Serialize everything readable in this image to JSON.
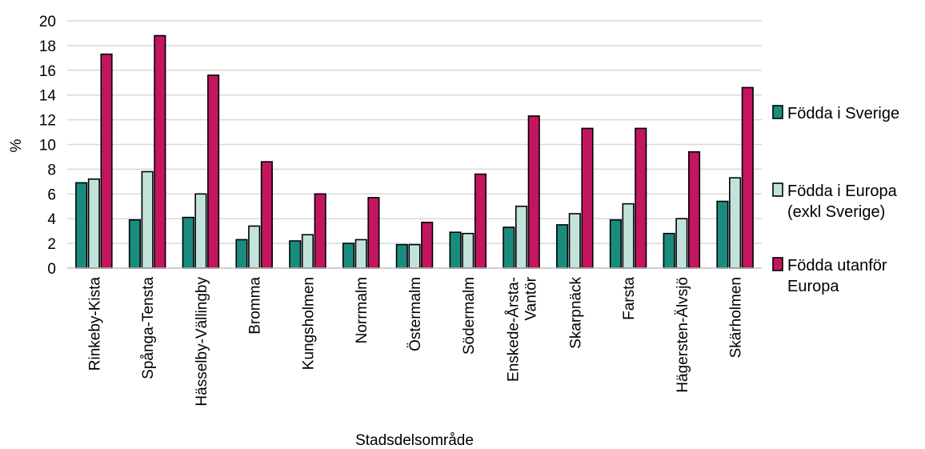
{
  "chart_data": {
    "type": "bar",
    "xlabel": "Stadsdelsområde",
    "ylabel": "%",
    "ylim": [
      0,
      20
    ],
    "yticks": [
      0,
      2,
      4,
      6,
      8,
      10,
      12,
      14,
      16,
      18,
      20
    ],
    "grid": true,
    "legend_position": "right",
    "categories": [
      [
        "Rinkeby-Kista"
      ],
      [
        "Spånga-Tensta"
      ],
      [
        "Hässelby-Vällingby"
      ],
      [
        "Bromma"
      ],
      [
        "Kungsholmen"
      ],
      [
        "Norrmalm"
      ],
      [
        "Östermalm"
      ],
      [
        "Södermalm"
      ],
      [
        "Enskede-Årsta-",
        "Vantör"
      ],
      [
        "Skarpnäck"
      ],
      [
        "Farsta"
      ],
      [
        "Hägersten-Älvsjö"
      ],
      [
        "Skärholmen"
      ]
    ],
    "series": [
      {
        "name": [
          "Födda i Sverige"
        ],
        "color": "#1a8c7e",
        "values": [
          6.9,
          3.9,
          4.1,
          2.3,
          2.2,
          2.0,
          1.9,
          2.9,
          3.3,
          3.5,
          3.9,
          2.8,
          5.4
        ]
      },
      {
        "name": [
          "Födda i Europa",
          "(exkl Sverige)"
        ],
        "color": "#c2e3dc",
        "values": [
          7.2,
          7.8,
          6.0,
          3.4,
          2.7,
          2.3,
          1.9,
          2.8,
          5.0,
          4.4,
          5.2,
          4.0,
          7.3
        ]
      },
      {
        "name": [
          "Födda utanför",
          "Europa"
        ],
        "color": "#c4155f",
        "values": [
          17.3,
          18.8,
          15.6,
          8.6,
          6.0,
          5.7,
          3.7,
          7.6,
          12.3,
          11.3,
          11.3,
          9.4,
          14.6
        ]
      }
    ]
  }
}
